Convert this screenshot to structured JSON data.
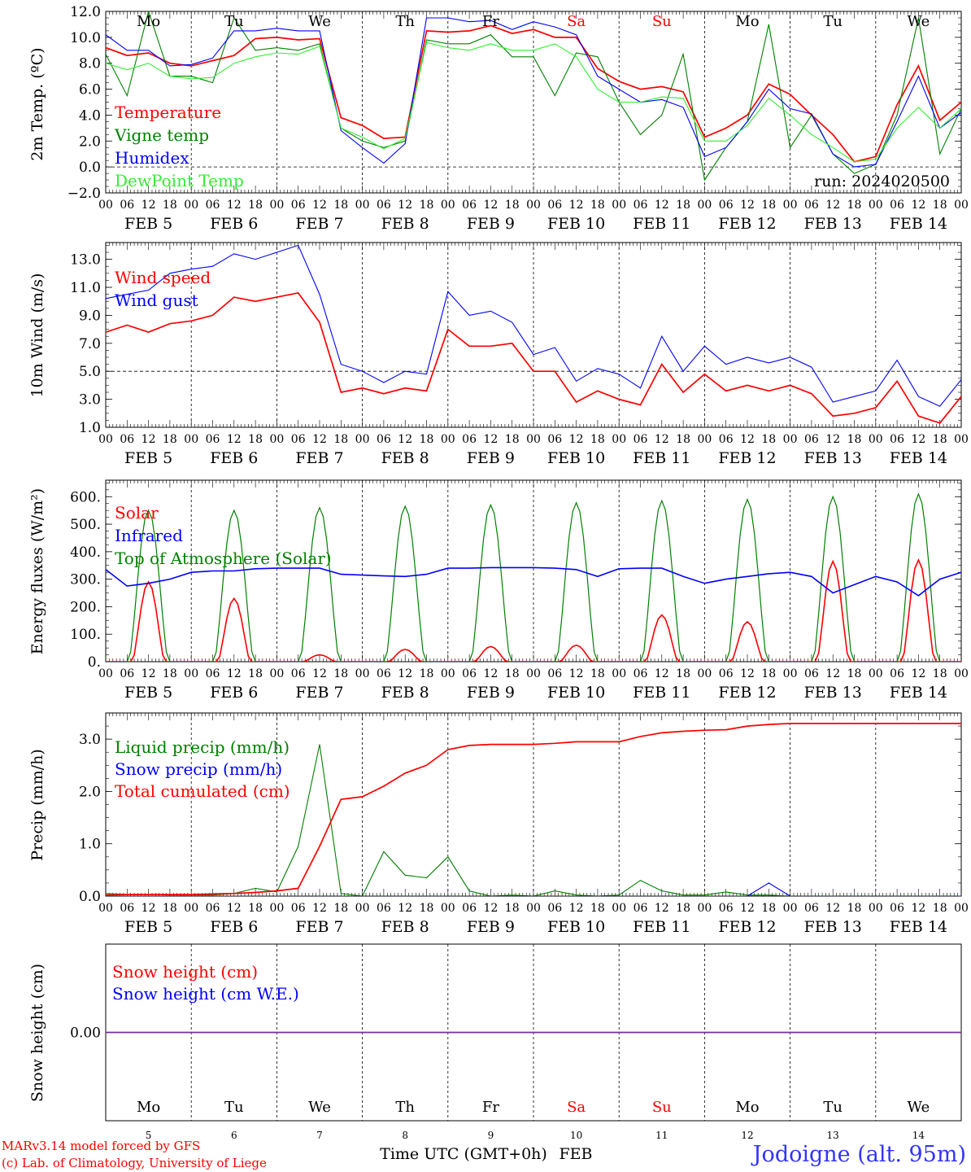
{
  "location": "Jodoigne (alt. 95m)",
  "credit": [
    "MARv3.14 model forced by GFS",
    "(c) Lab. of Climatology, University of Liege"
  ],
  "xaxis": {
    "title": "Time UTC (GMT+0h)",
    "month": "FEB",
    "hour_ticks": [
      "00",
      "06",
      "12",
      "18"
    ],
    "last_tick": "00",
    "dates": [
      "FEB  5",
      "FEB  6",
      "FEB  7",
      "FEB  8",
      "FEB  9",
      "FEB 10",
      "FEB 11",
      "FEB 12",
      "FEB 13",
      "FEB 14"
    ],
    "day_numbers": [
      "5",
      "6",
      "7",
      "8",
      "9",
      "10",
      "11",
      "12",
      "13",
      "14"
    ],
    "weekdays": [
      "Mo",
      "Tu",
      "We",
      "Th",
      "Fr",
      "Sa",
      "Su",
      "Mo",
      "Tu",
      "We"
    ],
    "weekday_colors": [
      "#000000",
      "#000000",
      "#000000",
      "#000000",
      "#000000",
      "#ff0000",
      "#ff0000",
      "#000000",
      "#000000",
      "#000000"
    ]
  },
  "chart_data": [
    {
      "type": "line",
      "ylabel": "2m Temp. (ºC)",
      "ylim": [
        -2,
        12
      ],
      "yticks": [
        "12.0",
        "10.0",
        "8.0",
        "6.0",
        "4.0",
        "2.0",
        "0.0",
        "−2.0"
      ],
      "ytick_values": [
        12,
        10,
        8,
        6,
        4,
        2,
        0,
        -2
      ],
      "ref_line": 0,
      "annotation": "run: 2024020500",
      "hours": [
        0,
        6,
        12,
        18,
        24,
        30,
        36,
        42,
        48,
        54,
        60,
        66,
        72,
        78,
        84,
        90,
        96,
        102,
        108,
        114,
        120,
        126,
        132,
        138,
        144,
        150,
        156,
        162,
        168,
        174,
        180,
        186,
        192,
        198,
        204,
        210,
        216,
        222,
        228,
        234,
        240
      ],
      "series": [
        {
          "name": "Temperature",
          "color": "#ff0000",
          "values": [
            9.2,
            8.6,
            8.8,
            8.0,
            7.8,
            8.2,
            8.6,
            9.9,
            10.0,
            9.8,
            9.9,
            3.8,
            3.2,
            2.2,
            2.3,
            10.5,
            10.4,
            10.5,
            10.9,
            10.3,
            10.6,
            10.0,
            10.0,
            7.6,
            6.6,
            6.0,
            6.2,
            5.8,
            2.3,
            3.0,
            4.0,
            6.4,
            5.6,
            4.0,
            2.5,
            0.4,
            0.8,
            4.8,
            7.8,
            3.6,
            5.0
          ]
        },
        {
          "name": "Vigne temp",
          "color": "#008000",
          "values": [
            8.7,
            5.5,
            12.0,
            7.0,
            7.0,
            6.5,
            11.5,
            9.0,
            9.2,
            9.0,
            9.5,
            3.0,
            2.0,
            1.5,
            2.0,
            9.8,
            9.5,
            9.5,
            10.2,
            8.5,
            8.5,
            5.5,
            8.8,
            8.5,
            5.0,
            2.5,
            4.0,
            8.7,
            -1.0,
            1.5,
            3.5,
            11.0,
            1.5,
            4.0,
            1.0,
            -0.5,
            0.2,
            4.0,
            11.5,
            1.0,
            4.5
          ]
        },
        {
          "name": "Humidex",
          "color": "#0000ff",
          "values": [
            10.2,
            9.0,
            9.0,
            7.8,
            7.9,
            8.4,
            10.5,
            10.5,
            10.7,
            10.5,
            10.5,
            2.8,
            1.5,
            0.3,
            1.8,
            11.5,
            11.5,
            11.2,
            11.3,
            10.6,
            11.2,
            10.8,
            10.2,
            7.0,
            6.0,
            5.0,
            5.2,
            4.6,
            0.8,
            1.5,
            3.5,
            6.0,
            4.5,
            4.1,
            1.0,
            0.0,
            0.2,
            3.5,
            7.0,
            3.0,
            4.2
          ]
        },
        {
          "name": "DewPoint Temp",
          "color": "#33ee33",
          "values": [
            8.0,
            7.5,
            8.0,
            7.0,
            6.8,
            6.9,
            8.0,
            8.5,
            8.8,
            8.7,
            9.3,
            3.0,
            2.3,
            1.4,
            2.2,
            9.6,
            9.2,
            9.0,
            9.5,
            9.0,
            9.0,
            9.5,
            8.5,
            6.0,
            5.0,
            5.0,
            5.4,
            5.3,
            2.0,
            2.0,
            3.2,
            5.3,
            4.0,
            2.5,
            1.5,
            0.4,
            0.6,
            3.0,
            4.6,
            3.0,
            4.5
          ]
        }
      ]
    },
    {
      "type": "line",
      "ylabel": "10m Wind (m/s)",
      "ylim": [
        1,
        14.2
      ],
      "yticks": [
        "13.0",
        "11.0",
        "9.0",
        "7.0",
        "5.0",
        "3.0",
        "1.0"
      ],
      "ytick_values": [
        13,
        11,
        9,
        7,
        5,
        3,
        1
      ],
      "ref_line": 5,
      "hours": [
        0,
        6,
        12,
        18,
        24,
        30,
        36,
        42,
        48,
        54,
        60,
        66,
        72,
        78,
        84,
        90,
        96,
        102,
        108,
        114,
        120,
        126,
        132,
        138,
        144,
        150,
        156,
        162,
        168,
        174,
        180,
        186,
        192,
        198,
        204,
        210,
        216,
        222,
        228,
        234,
        240
      ],
      "series": [
        {
          "name": "Wind speed",
          "color": "#ff0000",
          "values": [
            7.8,
            8.3,
            7.8,
            8.4,
            8.6,
            9.0,
            10.3,
            10.0,
            10.3,
            10.6,
            8.5,
            3.5,
            3.8,
            3.4,
            3.8,
            3.6,
            8.0,
            6.8,
            6.8,
            7.0,
            5.0,
            5.0,
            2.8,
            3.6,
            3.0,
            2.6,
            5.5,
            3.5,
            4.8,
            3.6,
            4.0,
            3.6,
            4.0,
            3.4,
            1.8,
            2.0,
            2.4,
            4.3,
            1.8,
            1.3,
            3.2
          ]
        },
        {
          "name": "Wind gust",
          "color": "#0000ff",
          "values": [
            10.2,
            10.5,
            10.8,
            12.0,
            12.3,
            12.5,
            13.4,
            13.0,
            13.5,
            14.0,
            10.5,
            5.5,
            5.0,
            4.2,
            5.0,
            4.8,
            10.7,
            9.0,
            9.3,
            8.5,
            6.2,
            6.7,
            4.3,
            5.2,
            4.8,
            3.8,
            7.5,
            5.0,
            6.8,
            5.5,
            6.0,
            5.6,
            6.0,
            5.3,
            2.8,
            3.2,
            3.6,
            5.8,
            3.2,
            2.5,
            4.4
          ]
        }
      ]
    },
    {
      "type": "line",
      "ylabel": "Energy fluxes (W/m²)",
      "ylim": [
        0,
        660
      ],
      "yticks": [
        "600.",
        "500.",
        "400.",
        "300.",
        "200.",
        "100.",
        "0."
      ],
      "ytick_values": [
        600,
        500,
        400,
        300,
        200,
        100,
        0
      ],
      "solar_peaks": [
        290,
        230,
        25,
        45,
        55,
        60,
        170,
        145,
        365,
        370
      ],
      "toa_peaks": [
        550,
        550,
        560,
        565,
        570,
        578,
        585,
        590,
        600,
        610
      ],
      "hours": [
        0,
        6,
        12,
        18,
        24,
        30,
        36,
        42,
        48,
        54,
        60,
        66,
        72,
        78,
        84,
        90,
        96,
        102,
        108,
        114,
        120,
        126,
        132,
        138,
        144,
        150,
        156,
        162,
        168,
        174,
        180,
        186,
        192,
        198,
        204,
        210,
        216,
        222,
        228,
        234,
        240
      ],
      "series": [
        {
          "name": "Solar",
          "color": "#ff0000",
          "values": []
        },
        {
          "name": "Infrared",
          "color": "#0000ff",
          "values": [
            335,
            275,
            285,
            300,
            325,
            330,
            330,
            338,
            340,
            340,
            340,
            318,
            315,
            312,
            310,
            318,
            340,
            340,
            342,
            342,
            342,
            340,
            335,
            310,
            338,
            340,
            340,
            310,
            285,
            300,
            310,
            320,
            325,
            310,
            250,
            280,
            310,
            290,
            240,
            300,
            325
          ]
        },
        {
          "name": "Top of Atmosphere (Solar)",
          "color": "#008000",
          "values": []
        }
      ]
    },
    {
      "type": "line",
      "ylabel": "Precip (mm/h)",
      "ylim": [
        0,
        3.5
      ],
      "yticks": [
        "3.0",
        "2.0",
        "1.0",
        "0.0"
      ],
      "ytick_values": [
        3,
        2,
        1,
        0
      ],
      "hours": [
        0,
        6,
        12,
        18,
        24,
        30,
        36,
        42,
        48,
        54,
        60,
        66,
        72,
        78,
        84,
        90,
        96,
        102,
        108,
        114,
        120,
        126,
        132,
        138,
        144,
        150,
        156,
        162,
        168,
        174,
        180,
        186,
        192,
        198,
        204,
        210,
        216,
        222,
        228,
        234,
        240
      ],
      "series": [
        {
          "name": "Liquid precip (mm/h)",
          "color": "#008000",
          "values": [
            0.05,
            0.03,
            0.03,
            0.02,
            0.02,
            0.02,
            0.05,
            0.15,
            0.08,
            0.95,
            2.9,
            0.05,
            0.0,
            0.85,
            0.4,
            0.35,
            0.75,
            0.1,
            0.0,
            0.02,
            0.0,
            0.1,
            0.02,
            0.0,
            0.02,
            0.3,
            0.1,
            0.02,
            0.02,
            0.08,
            0.02,
            0.02,
            0.0,
            0.0,
            0.0,
            0.0,
            0.0,
            0.0,
            0.0,
            0.0,
            0.0
          ]
        },
        {
          "name": "Snow precip (mm/h)",
          "color": "#0000ff",
          "values": [
            0.0,
            0.0,
            0.0,
            0.0,
            0.0,
            0.0,
            0.0,
            0.0,
            0.0,
            0.0,
            0.0,
            0.0,
            0.0,
            0.0,
            0.0,
            0.0,
            0.0,
            0.0,
            0.0,
            0.0,
            0.0,
            0.0,
            0.0,
            0.0,
            0.0,
            0.0,
            0.0,
            0.0,
            0.0,
            0.0,
            0.0,
            0.25,
            0.0,
            0.0,
            0.0,
            0.0,
            0.0,
            0.0,
            0.0,
            0.0,
            0.0
          ]
        },
        {
          "name": "Total cumulated (cm)",
          "color": "#ff0000",
          "values": [
            0.02,
            0.03,
            0.03,
            0.03,
            0.03,
            0.04,
            0.05,
            0.07,
            0.1,
            0.15,
            0.95,
            1.85,
            1.9,
            2.1,
            2.35,
            2.5,
            2.8,
            2.88,
            2.9,
            2.9,
            2.9,
            2.92,
            2.95,
            2.95,
            2.95,
            3.05,
            3.12,
            3.15,
            3.17,
            3.18,
            3.25,
            3.28,
            3.3,
            3.3,
            3.3,
            3.3,
            3.3,
            3.3,
            3.3,
            3.3,
            3.3
          ]
        }
      ]
    },
    {
      "type": "line",
      "ylabel": "Snow height (cm)",
      "ylim": [
        -1,
        1
      ],
      "yticks": [
        "0.00"
      ],
      "ytick_values": [
        0
      ],
      "hours": [
        0,
        240
      ],
      "series": [
        {
          "name": "Snow height (cm)",
          "color": "#ff0000",
          "values": [
            0,
            0
          ]
        },
        {
          "name": "Snow height (cm W.E.)",
          "color": "#0000ff",
          "values": [
            0,
            0
          ]
        }
      ]
    }
  ]
}
